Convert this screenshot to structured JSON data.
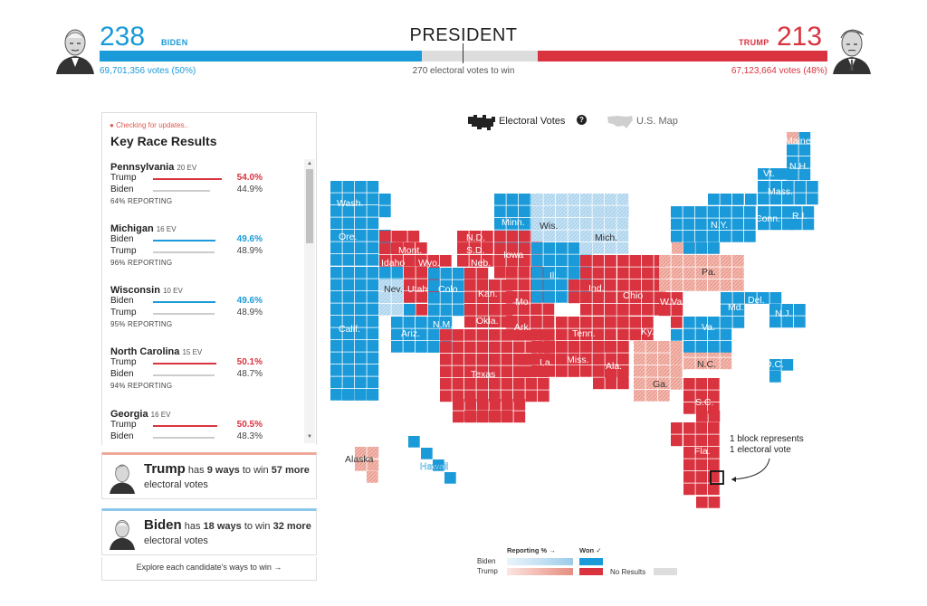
{
  "header": {
    "title": "PRESIDENT",
    "threshold_label": "270 electoral votes to win",
    "biden": {
      "ev": "238",
      "name": "BIDEN",
      "votes": "69,701,356 votes (50%)",
      "color": "#1a9ad8"
    },
    "trump": {
      "ev": "213",
      "name": "TRUMP",
      "votes": "67,123,664 votes (48%)",
      "color": "#d9333f"
    }
  },
  "toggle": {
    "electoral_label": "Electoral Votes",
    "map_label": "U.S. Map",
    "help_glyph": "?"
  },
  "panel": {
    "status": "Checking for updates..",
    "title": "Key Race Results",
    "races": [
      {
        "state": "Pennsylvania",
        "ev": "20 EV",
        "lead": "Trump",
        "lead_pct": "54.0%",
        "lead_frac": 0.54,
        "trail": "Biden",
        "trail_pct": "44.9%",
        "trail_frac": 0.449,
        "reporting": "64% REPORTING",
        "lead_party": "trump"
      },
      {
        "state": "Michigan",
        "ev": "16 EV",
        "lead": "Biden",
        "lead_pct": "49.6%",
        "lead_frac": 0.496,
        "trail": "Trump",
        "trail_pct": "48.9%",
        "trail_frac": 0.489,
        "reporting": "96% REPORTING",
        "lead_party": "biden"
      },
      {
        "state": "Wisconsin",
        "ev": "10 EV",
        "lead": "Biden",
        "lead_pct": "49.6%",
        "lead_frac": 0.496,
        "trail": "Trump",
        "trail_pct": "48.9%",
        "trail_frac": 0.489,
        "reporting": "95% REPORTING",
        "lead_party": "biden"
      },
      {
        "state": "North Carolina",
        "ev": "15 EV",
        "lead": "Trump",
        "lead_pct": "50.1%",
        "lead_frac": 0.501,
        "trail": "Biden",
        "trail_pct": "48.7%",
        "trail_frac": 0.487,
        "reporting": "94% REPORTING",
        "lead_party": "trump"
      },
      {
        "state": "Georgia",
        "ev": "16 EV",
        "lead": "Trump",
        "lead_pct": "50.5%",
        "lead_frac": 0.505,
        "trail": "Biden",
        "trail_pct": "48.3%",
        "trail_frac": 0.483,
        "reporting": "",
        "lead_party": "trump"
      }
    ],
    "ways": {
      "trump": {
        "name": "Trump",
        "has": "has",
        "count": "9 ways",
        "to_win": "to win",
        "ev": "57 more",
        "tail": "electoral votes"
      },
      "biden": {
        "name": "Biden",
        "has": "has",
        "count": "18 ways",
        "to_win": "to win",
        "ev": "32 more",
        "tail": "electoral votes"
      }
    },
    "explore": "Explore each candidate's ways to win →"
  },
  "map": {
    "annotation_line1": "1 block represents",
    "annotation_line2": "1 electoral vote",
    "states": [
      {
        "name": "Wash.",
        "won": "biden"
      },
      {
        "name": "Ore.",
        "won": "biden"
      },
      {
        "name": "Calif.",
        "won": "biden"
      },
      {
        "name": "Nev.",
        "won": "biden-leading"
      },
      {
        "name": "Idaho",
        "won": "trump"
      },
      {
        "name": "Mont.",
        "won": "trump"
      },
      {
        "name": "Wyo.",
        "won": "trump"
      },
      {
        "name": "Utah",
        "won": "trump"
      },
      {
        "name": "Ariz.",
        "won": "biden"
      },
      {
        "name": "Colo.",
        "won": "biden"
      },
      {
        "name": "N.M.",
        "won": "biden"
      },
      {
        "name": "N.D.",
        "won": "trump"
      },
      {
        "name": "S.D.",
        "won": "trump"
      },
      {
        "name": "Neb.",
        "won": "trump"
      },
      {
        "name": "Kan.",
        "won": "trump"
      },
      {
        "name": "Okla.",
        "won": "trump"
      },
      {
        "name": "Texas",
        "won": "trump"
      },
      {
        "name": "Minn.",
        "won": "biden"
      },
      {
        "name": "Iowa",
        "won": "trump"
      },
      {
        "name": "Mo.",
        "won": "trump"
      },
      {
        "name": "Ark.",
        "won": "trump"
      },
      {
        "name": "La.",
        "won": "trump"
      },
      {
        "name": "Wis.",
        "won": "biden-leading"
      },
      {
        "name": "Ill.",
        "won": "biden"
      },
      {
        "name": "Mich.",
        "won": "biden-leading"
      },
      {
        "name": "Ind.",
        "won": "trump"
      },
      {
        "name": "Ohio",
        "won": "trump"
      },
      {
        "name": "Ky.",
        "won": "trump"
      },
      {
        "name": "Tenn.",
        "won": "trump"
      },
      {
        "name": "Miss.",
        "won": "trump"
      },
      {
        "name": "Ala.",
        "won": "trump"
      },
      {
        "name": "Ga.",
        "won": "trump-leading"
      },
      {
        "name": "Fla.",
        "won": "trump"
      },
      {
        "name": "S.C.",
        "won": "trump"
      },
      {
        "name": "N.C.",
        "won": "trump-leading"
      },
      {
        "name": "Va.",
        "won": "biden"
      },
      {
        "name": "W.Va.",
        "won": "trump"
      },
      {
        "name": "Pa.",
        "won": "trump-leading"
      },
      {
        "name": "Md.",
        "won": "biden"
      },
      {
        "name": "Del.",
        "won": "biden"
      },
      {
        "name": "N.J.",
        "won": "biden"
      },
      {
        "name": "N.Y.",
        "won": "biden"
      },
      {
        "name": "Conn.",
        "won": "biden"
      },
      {
        "name": "R.I.",
        "won": "biden"
      },
      {
        "name": "Mass.",
        "won": "biden"
      },
      {
        "name": "Vt.",
        "won": "biden"
      },
      {
        "name": "N.H.",
        "won": "biden"
      },
      {
        "name": "Maine",
        "won": "biden"
      },
      {
        "name": "D.C.",
        "won": "biden"
      },
      {
        "name": "Alaska",
        "won": "trump-leading"
      },
      {
        "name": "Hawaii",
        "won": "biden"
      }
    ]
  },
  "legend": {
    "reporting_label": "Reporting % →",
    "won_label": "Won ✓",
    "biden": "Biden",
    "trump": "Trump",
    "no_results": "No Results"
  },
  "colors": {
    "biden": "#1a9ad8",
    "biden_light": "#c5e1f3",
    "trump": "#d9333f",
    "trump_light": "#f2b8ae",
    "none": "#dddddd"
  }
}
